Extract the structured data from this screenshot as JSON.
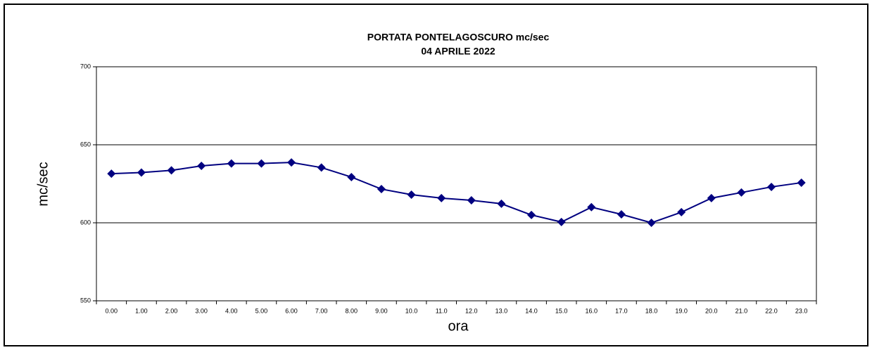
{
  "chart_data": {
    "type": "line",
    "title": "PORTATA PONTELAGOSCURO mc/sec",
    "subtitle": "04 APRILE 2022",
    "x_label": "ora",
    "y_label": "mc/sec",
    "categories": [
      "0.00",
      "1.00",
      "2.00",
      "3.00",
      "4.00",
      "5.00",
      "6.00",
      "7.00",
      "8.00",
      "9.00",
      "10.0",
      "11.0",
      "12.0",
      "13.0",
      "14.0",
      "15.0",
      "16.0",
      "17.0",
      "18.0",
      "19.0",
      "20.0",
      "21.0",
      "22.0",
      "23.0"
    ],
    "series": [
      {
        "color": "#000080",
        "values": [
          631.5,
          632.2,
          633.6,
          636.5,
          638,
          638,
          638.7,
          635.4,
          629.3,
          621.6,
          618,
          615.8,
          614.4,
          612.2,
          605,
          600.5,
          610,
          605.4,
          600,
          606.8,
          615.8,
          619.4,
          623,
          625.7
        ]
      }
    ],
    "ylim": [
      550,
      700
    ],
    "yticks": [
      550,
      600,
      650,
      700
    ],
    "grid": true
  }
}
